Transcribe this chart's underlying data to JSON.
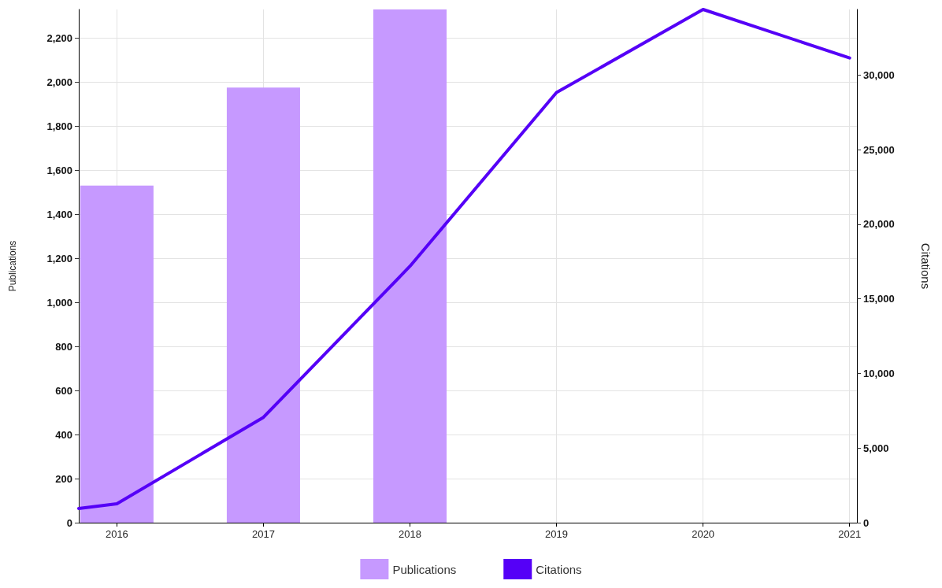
{
  "chart_data": {
    "type": "bar",
    "xlabel": null,
    "ylabel": "Publications",
    "y2label": "Citations",
    "xlim": [
      2015.74,
      2021.05
    ],
    "xticks": [
      2016,
      2017,
      2018,
      2019,
      2020,
      2021
    ],
    "ylim": [
      0,
      2330
    ],
    "yticks": [
      0,
      200,
      400,
      600,
      800,
      {
        "value": 1000,
        "label": "1,000"
      },
      {
        "value": 1200,
        "label": "1,200"
      },
      {
        "value": 1400,
        "label": "1,400"
      },
      {
        "value": 1600,
        "label": "1,600"
      },
      {
        "value": 1800,
        "label": "1,800"
      },
      {
        "value": 2000,
        "label": "2,000"
      },
      {
        "value": 2200,
        "label": "2,200"
      }
    ],
    "y2lim": [
      0,
      34400
    ],
    "y2ticks": [
      0,
      {
        "value": 5000,
        "label": "5,000"
      },
      {
        "value": 10000,
        "label": "10,000"
      },
      {
        "value": 15000,
        "label": "15,000"
      },
      {
        "value": 20000,
        "label": "20,000"
      },
      {
        "value": 25000,
        "label": "25,000"
      },
      {
        "value": 30000,
        "label": "30,000"
      }
    ],
    "series": [
      {
        "name": "Publications",
        "color": "#c699ff",
        "x": [
          2016,
          2017,
          2018
        ],
        "values": [
          1530,
          1975,
          2330
        ]
      },
      {
        "name": "Citations",
        "type": "line",
        "axis": "y2",
        "color": "#5500f7",
        "x": [
          2015.74,
          2016,
          2017,
          2018,
          2019,
          2020,
          2021
        ],
        "values": [
          950,
          1270,
          7060,
          17190,
          28830,
          34400,
          31150
        ]
      }
    ],
    "grid": true,
    "legend": "bottom",
    "marker": "none",
    "line_style": "solid"
  }
}
